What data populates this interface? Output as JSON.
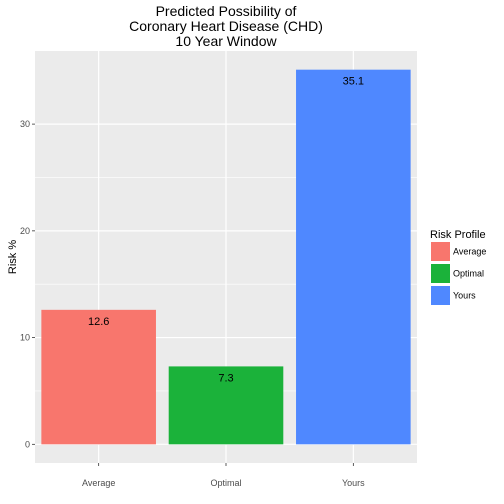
{
  "chart_data": {
    "type": "bar",
    "title_lines": [
      "Predicted Possibility of",
      "Coronary Heart Disease (CHD)",
      "10 Year Window"
    ],
    "xlabel": "",
    "ylabel": "Risk %",
    "categories": [
      "Average",
      "Optimal",
      "Yours"
    ],
    "values": [
      12.6,
      7.3,
      35.1
    ],
    "value_labels": [
      "12.6",
      "7.3",
      "35.1"
    ],
    "colors": [
      "#F8766D",
      "#1BB23A",
      "#4F88FF"
    ],
    "ylim": [
      -1.75,
      36.85
    ],
    "yticks": [
      0,
      10,
      20,
      30
    ],
    "ytick_labels": [
      "0",
      "10",
      "20",
      "30"
    ],
    "grid": true,
    "panel_background": "#EBEBEB",
    "gridline_color": "#FFFFFF",
    "legend": {
      "title": "Risk Profile",
      "position": "right",
      "items": [
        "Average",
        "Optimal",
        "Yours"
      ]
    }
  }
}
